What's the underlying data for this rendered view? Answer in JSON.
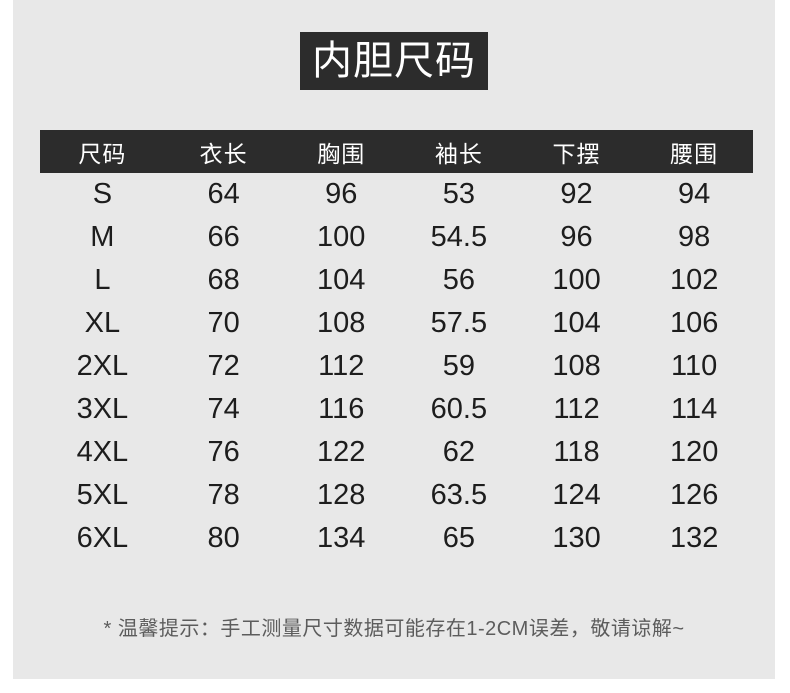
{
  "title": "内胆尺码",
  "footer_note": "* 温馨提示：手工测量尺寸数据可能存在1-2CM误差，敬请谅解~",
  "colors": {
    "page_bg": "#ffffff",
    "panel_bg": "#e8e8e8",
    "dark_bg": "#2c2c2c",
    "light_text": "#ffffff",
    "body_text": "#1d1d1d",
    "note_text": "#5c5c5c"
  },
  "chart_data": {
    "type": "table",
    "title": "内胆尺码",
    "columns": [
      "尺码",
      "衣长",
      "胸围",
      "袖长",
      "下摆",
      "腰围"
    ],
    "column_keys": [
      "size",
      "garment-length",
      "bust",
      "sleeve-length",
      "hem",
      "waist"
    ],
    "rows": [
      [
        "S",
        "64",
        "96",
        "53",
        "92",
        "94"
      ],
      [
        "M",
        "66",
        "100",
        "54.5",
        "96",
        "98"
      ],
      [
        "L",
        "68",
        "104",
        "56",
        "100",
        "102"
      ],
      [
        "XL",
        "70",
        "108",
        "57.5",
        "104",
        "106"
      ],
      [
        "2XL",
        "72",
        "112",
        "59",
        "108",
        "110"
      ],
      [
        "3XL",
        "74",
        "116",
        "60.5",
        "112",
        "114"
      ],
      [
        "4XL",
        "76",
        "122",
        "62",
        "118",
        "120"
      ],
      [
        "5XL",
        "78",
        "128",
        "63.5",
        "124",
        "126"
      ],
      [
        "6XL",
        "80",
        "134",
        "65",
        "130",
        "132"
      ]
    ],
    "note": "* 温馨提示：手工测量尺寸数据可能存在1-2CM误差，敬请谅解~",
    "layout_hints": {
      "header_style": "dark-bar-white-text",
      "grid": false,
      "alignment": "center"
    }
  }
}
